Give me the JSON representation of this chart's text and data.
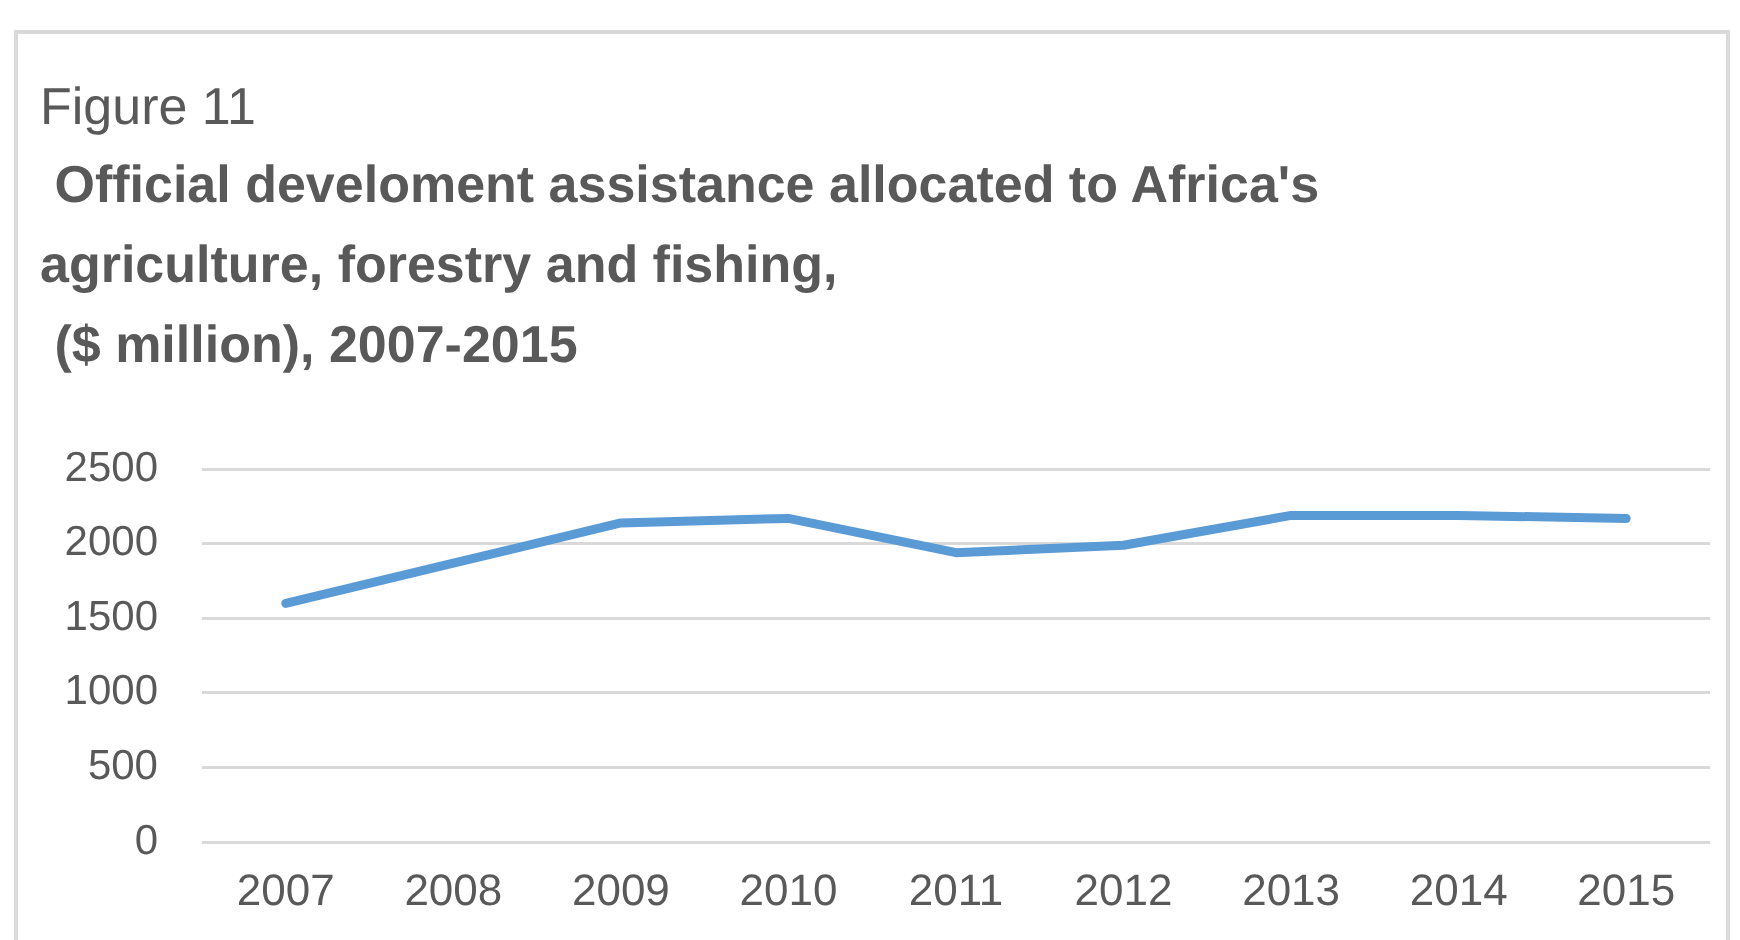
{
  "chart_data": {
    "type": "line",
    "title": " Official develoment assistance allocated to Africa's\nagriculture, forestry and fishing,\n ($ million), 2007-2015",
    "annotations": [
      "Figure 11"
    ],
    "categories": [
      "2007",
      "2008",
      "2009",
      "2010",
      "2011",
      "2012",
      "2013",
      "2014",
      "2015"
    ],
    "values": [
      1600,
      1870,
      2140,
      2170,
      1940,
      1990,
      2190,
      2190,
      2170
    ],
    "color": "#5b9bd5",
    "ylim": [
      0,
      2500
    ],
    "yticks": [
      0,
      500,
      1000,
      1500,
      2000,
      2500
    ],
    "grid": "y",
    "marker": "none",
    "line_style": "solid"
  }
}
